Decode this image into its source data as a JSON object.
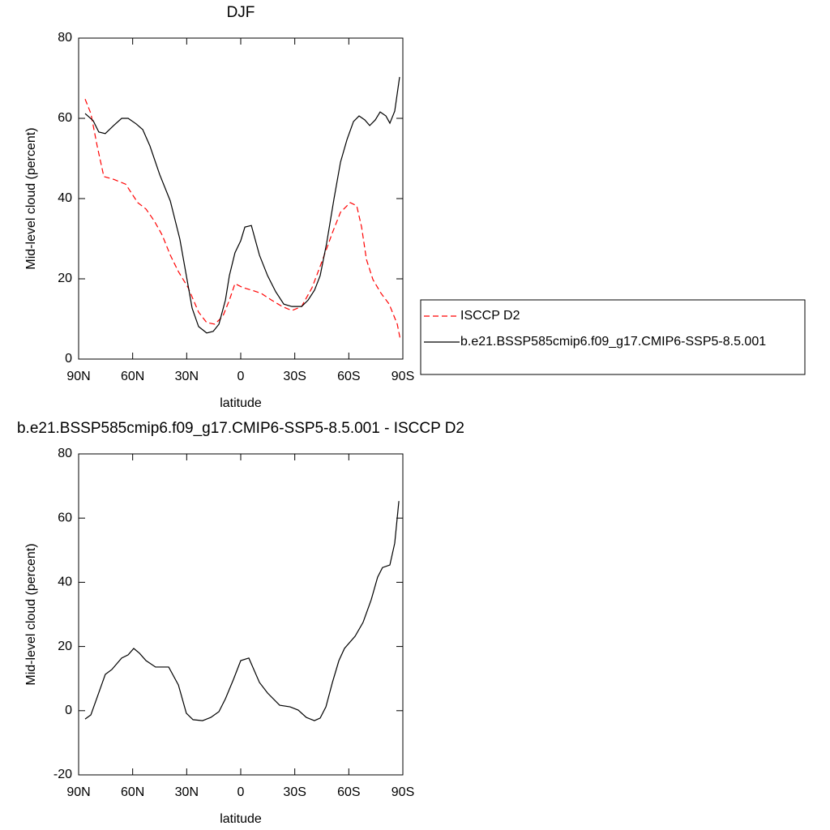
{
  "chart_data": [
    {
      "type": "line",
      "title": "DJF",
      "xlabel": "latitude",
      "ylabel": "Mid-level cloud (percent)",
      "xlim": [
        90,
        -90
      ],
      "ylim": [
        0,
        80
      ],
      "xticks": [
        {
          "value": 90,
          "label": "90N"
        },
        {
          "value": 60,
          "label": "60N"
        },
        {
          "value": 30,
          "label": "30N"
        },
        0,
        {
          "value": -30,
          "label": "30S"
        },
        {
          "value": -60,
          "label": "60S"
        },
        {
          "value": -90,
          "label": "90S"
        }
      ],
      "yticks": [
        0,
        20,
        40,
        60,
        80
      ],
      "legend": true,
      "legend_position": "right",
      "series": [
        {
          "name": "ISCCP D2",
          "color": "#ff0000",
          "dash": true,
          "x": [
            86.4,
            83.2,
            79.7,
            76,
            70.6,
            63.9,
            57.2,
            52.6,
            48.1,
            43.6,
            39.1,
            34.6,
            29.2,
            23.4,
            18.9,
            14.4,
            9.9,
            6.3,
            3.2,
            -1.3,
            -5.9,
            -11.3,
            -17.1,
            -23,
            -28.4,
            -33.8,
            -39.6,
            -45.5,
            -50.9,
            -55.4,
            -60.8,
            -64.4,
            -67.1,
            -69.8,
            -73.4,
            -77.9,
            -82.4,
            -86.9,
            -88.7
          ],
          "values": [
            64.8,
            61.2,
            53.1,
            45.5,
            44.8,
            43.6,
            39,
            37.4,
            34.5,
            30.9,
            25.9,
            21.8,
            17.8,
            11.7,
            9.1,
            8.7,
            10.7,
            14.7,
            18.8,
            17.8,
            17.2,
            16.4,
            14.7,
            13.1,
            12.1,
            13.1,
            17.8,
            24.8,
            31.5,
            36.6,
            39,
            38.2,
            32.9,
            24.8,
            19.8,
            16.4,
            13.7,
            8.7,
            4.6
          ]
        },
        {
          "name": "b.e21.BSSP585cmip6.f09_g17.CMIP6-SSP5-8.5.001",
          "color": "#000000",
          "dash": false,
          "x": [
            86.4,
            81.9,
            78.8,
            75.2,
            70.6,
            66.1,
            62.5,
            58,
            54.4,
            50.4,
            45,
            39.1,
            33.8,
            30.2,
            27,
            23.4,
            18.9,
            15.3,
            12.1,
            8.5,
            6.3,
            3.2,
            0,
            -2.3,
            -5.9,
            -10.4,
            -14.9,
            -19.4,
            -23.9,
            -28.4,
            -33.8,
            -37.4,
            -41,
            -44.1,
            -47.7,
            -51.8,
            -55.4,
            -59,
            -62.6,
            -65.7,
            -68.9,
            -71.6,
            -74.7,
            -77.4,
            -80.6,
            -82.8,
            -85.5,
            -88.2
          ],
          "values": [
            61.2,
            59.4,
            56.6,
            56.2,
            58.2,
            60,
            60,
            58.6,
            57.2,
            53.1,
            46,
            39.4,
            29.9,
            20.8,
            12.7,
            8.1,
            6.5,
            6.9,
            8.7,
            14.7,
            20.8,
            26.5,
            29.5,
            32.9,
            33.3,
            25.9,
            20.8,
            16.8,
            13.7,
            13.1,
            13.1,
            14.7,
            17.2,
            20.8,
            28.9,
            40,
            49.1,
            54.7,
            59.2,
            60.6,
            59.6,
            58.2,
            59.6,
            61.6,
            60.6,
            58.8,
            61.8,
            70.3
          ]
        }
      ]
    },
    {
      "type": "line",
      "title": "b.e21.BSSP585cmip6.f09_g17.CMIP6-SSP5-8.5.001 - ISCCP D2",
      "xlabel": "latitude",
      "ylabel": "Mid-level cloud (percent)",
      "xlim": [
        90,
        -90
      ],
      "ylim": [
        -20,
        80
      ],
      "xticks": [
        {
          "value": 90,
          "label": "90N"
        },
        {
          "value": 60,
          "label": "60N"
        },
        {
          "value": 30,
          "label": "30N"
        },
        0,
        {
          "value": -30,
          "label": "30S"
        },
        {
          "value": -60,
          "label": "60S"
        },
        {
          "value": -90,
          "label": "90S"
        }
      ],
      "yticks": [
        -20,
        0,
        20,
        40,
        60,
        80
      ],
      "legend": false,
      "series": [
        {
          "color": "#000000",
          "dash": false,
          "x": [
            86.4,
            83.2,
            79.7,
            75.2,
            71.6,
            66.1,
            62.5,
            59.4,
            56.2,
            52.6,
            47.3,
            40,
            34.6,
            30.2,
            26.5,
            21.2,
            16.6,
            12.1,
            8.5,
            4,
            0,
            -4.5,
            -10.4,
            -14.9,
            -21.6,
            -27.4,
            -31.9,
            -36.4,
            -40.9,
            -44.1,
            -47.3,
            -50.9,
            -54.5,
            -57.6,
            -63.5,
            -67.9,
            -72.4,
            -76,
            -78.7,
            -82.8,
            -85.5,
            -87.8
          ],
          "values": [
            -2.6,
            -1.3,
            4.2,
            11.3,
            12.8,
            16.4,
            17.4,
            19.4,
            17.9,
            15.6,
            13.6,
            13.6,
            8,
            -0.8,
            -2.8,
            -3.1,
            -2.1,
            -0.3,
            3.7,
            9.8,
            15.6,
            16.4,
            8.8,
            5.5,
            1.7,
            1.2,
            0.2,
            -2.1,
            -3.1,
            -2.3,
            1.2,
            8.8,
            15.6,
            19.4,
            23.2,
            27.5,
            34.5,
            41.6,
            44.6,
            45.4,
            52.2,
            65.3
          ]
        }
      ]
    }
  ]
}
